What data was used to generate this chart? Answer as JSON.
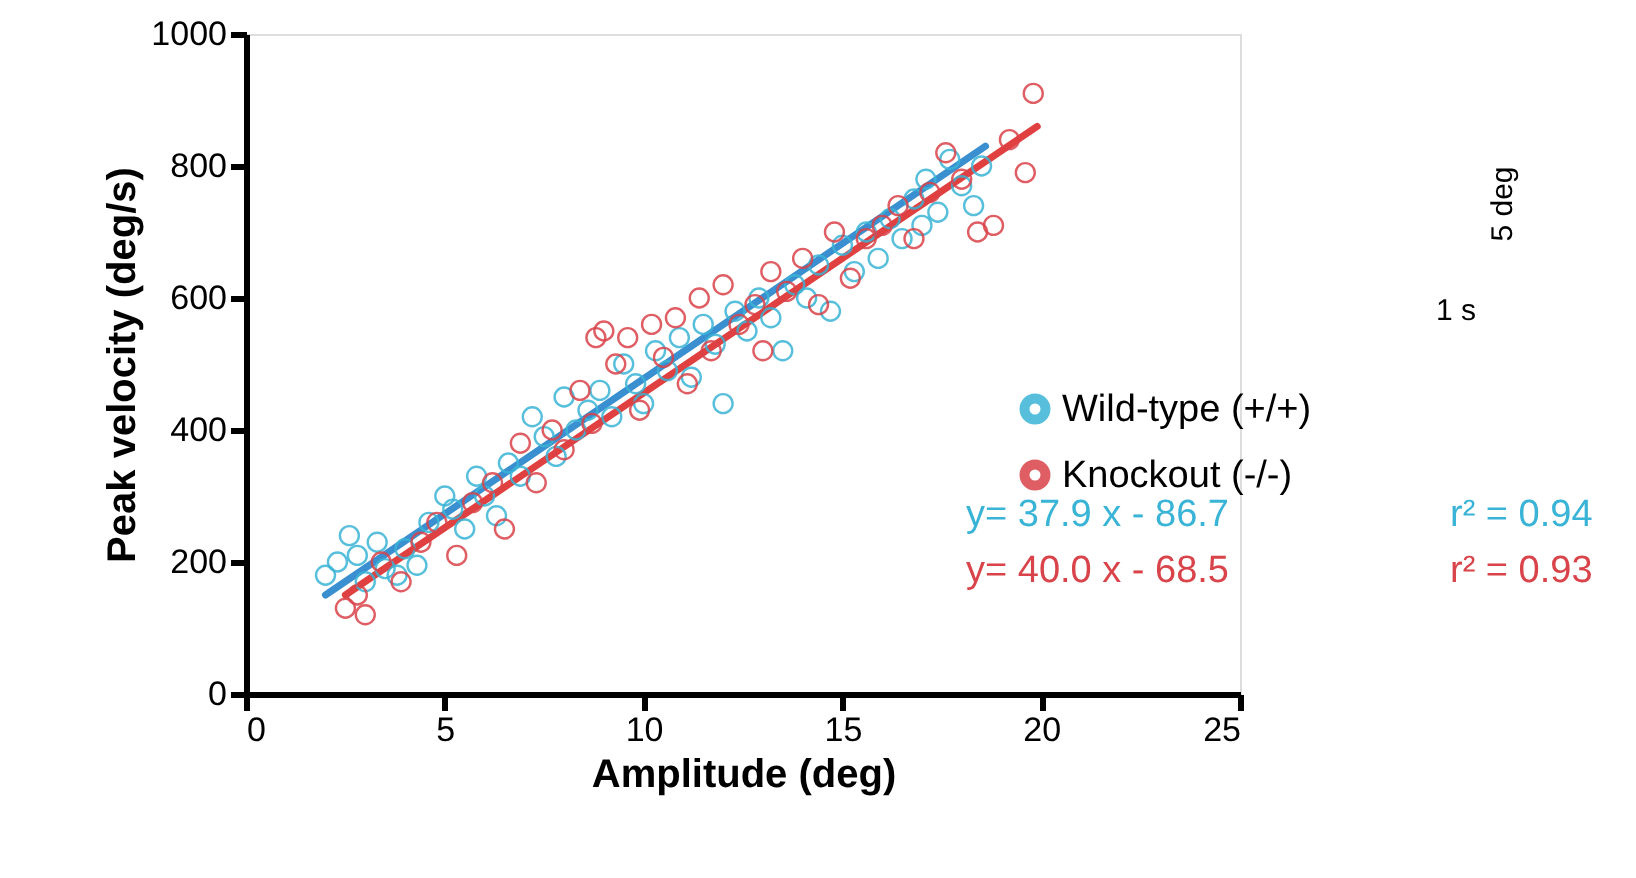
{
  "chart_data": {
    "type": "scatter",
    "xlabel": "Amplitude (deg)",
    "ylabel": "Peak velocity (deg/s)",
    "xlim": [
      0,
      25
    ],
    "xticks": [
      0,
      5,
      10,
      15,
      20,
      25
    ],
    "ylim": [
      0,
      1000
    ],
    "yticks": [
      0,
      200,
      400,
      600,
      800,
      1000
    ],
    "grid": false,
    "legend": "right",
    "series": [
      {
        "name": "Wild-type (+/+)",
        "color": "#3ab4d6",
        "type": "scatter",
        "marker": "circle",
        "x": [
          2.0,
          2.3,
          2.6,
          2.8,
          3.0,
          3.3,
          3.5,
          3.8,
          4.0,
          4.3,
          4.6,
          5.0,
          5.2,
          5.5,
          5.8,
          6.0,
          6.3,
          6.6,
          6.9,
          7.2,
          7.5,
          7.8,
          8.0,
          8.3,
          8.6,
          8.9,
          9.2,
          9.5,
          9.8,
          10.0,
          10.3,
          10.6,
          10.9,
          11.2,
          11.5,
          11.8,
          12.0,
          12.3,
          12.6,
          12.9,
          13.2,
          13.5,
          13.8,
          14.1,
          14.4,
          14.7,
          15.0,
          15.3,
          15.6,
          15.9,
          16.2,
          16.5,
          16.8,
          17.1,
          17.4,
          17.7,
          18.0,
          18.3,
          18.5,
          17.0
        ],
        "values": [
          180,
          200,
          240,
          210,
          170,
          230,
          190,
          180,
          220,
          195,
          260,
          300,
          280,
          250,
          330,
          300,
          270,
          350,
          330,
          420,
          390,
          360,
          450,
          400,
          430,
          460,
          420,
          500,
          470,
          440,
          520,
          490,
          540,
          480,
          560,
          530,
          440,
          580,
          550,
          600,
          570,
          520,
          620,
          600,
          650,
          580,
          680,
          640,
          700,
          660,
          720,
          690,
          750,
          780,
          730,
          810,
          770,
          740,
          800,
          710
        ]
      },
      {
        "name": "Knockout (-/-)",
        "color": "#d9434a",
        "type": "scatter",
        "marker": "circle",
        "x": [
          2.5,
          2.8,
          3.0,
          3.4,
          3.9,
          4.4,
          4.8,
          5.3,
          5.7,
          6.2,
          6.5,
          6.9,
          7.3,
          7.7,
          8.0,
          8.4,
          8.7,
          9.0,
          9.3,
          9.6,
          9.9,
          10.2,
          10.5,
          10.8,
          11.1,
          11.4,
          11.7,
          12.0,
          12.4,
          12.8,
          13.2,
          13.6,
          14.0,
          14.4,
          14.8,
          15.2,
          15.6,
          16.0,
          16.4,
          16.8,
          17.2,
          17.6,
          18.0,
          18.4,
          18.8,
          19.2,
          19.6,
          19.8,
          13.0,
          8.8
        ],
        "values": [
          130,
          150,
          120,
          200,
          170,
          230,
          260,
          210,
          290,
          320,
          250,
          380,
          320,
          400,
          370,
          460,
          410,
          550,
          500,
          540,
          430,
          560,
          510,
          570,
          470,
          600,
          520,
          620,
          560,
          590,
          640,
          610,
          660,
          590,
          700,
          630,
          690,
          710,
          740,
          690,
          760,
          820,
          780,
          700,
          710,
          840,
          790,
          910,
          520,
          540
        ]
      },
      {
        "color": "#e0403f",
        "type": "line",
        "marker": "none",
        "line_style": "solid",
        "x": [
          2.5,
          19.9
        ],
        "values": [
          150,
          860
        ]
      },
      {
        "color": "#3a8fd0",
        "type": "line",
        "marker": "none",
        "line_style": "solid",
        "x": [
          2.0,
          18.6
        ],
        "values": [
          150,
          830
        ]
      }
    ],
    "annotations": [
      "y= 37.9 x - 86.7",
      "r² = 0.94",
      "y= 40.0 x - 68.5",
      "r² = 0.93",
      "1 s",
      "5 deg"
    ]
  }
}
